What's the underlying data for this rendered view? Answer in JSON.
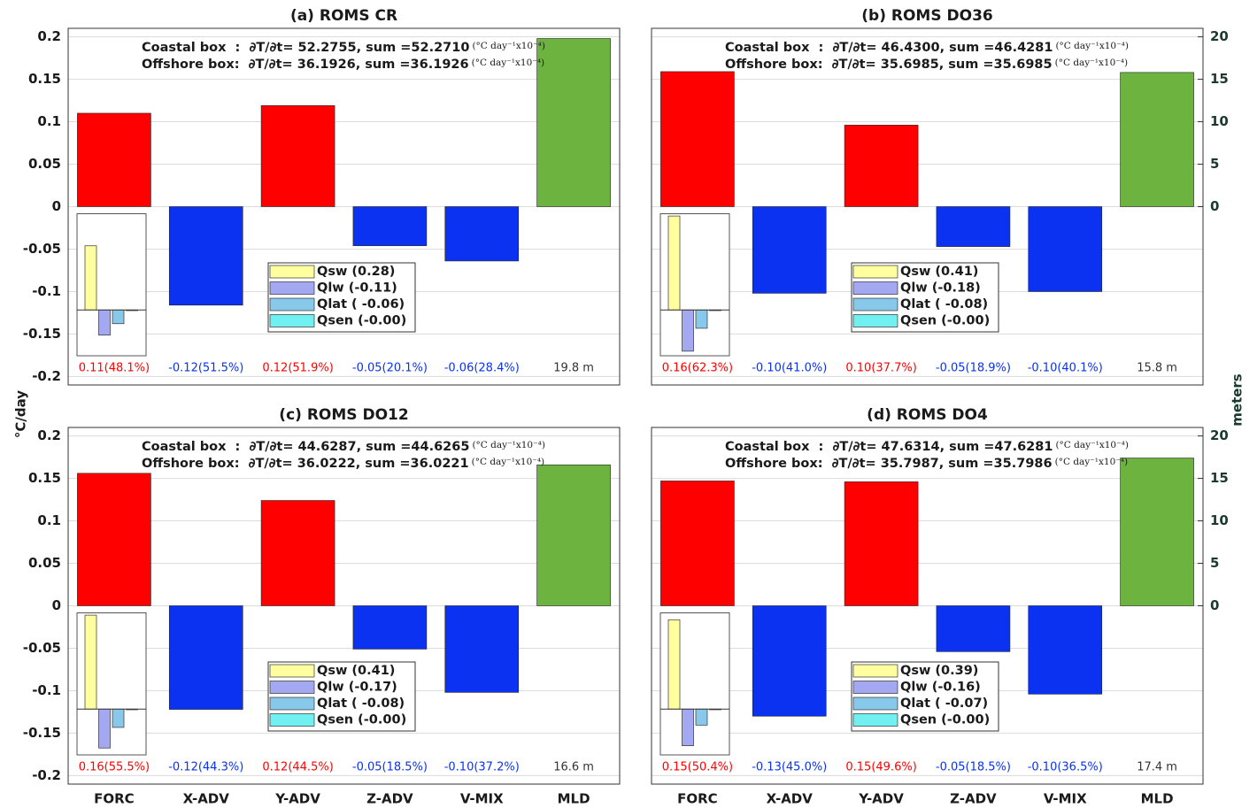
{
  "ylabel": "°C/day",
  "y2label": "meters",
  "chart_data": [
    {
      "type": "bar",
      "title": "(a) ROMS CR",
      "axis_side": "left",
      "annotations": [
        "Coastal box  :  ∂T/∂t= 52.2755, sum =52.2710",
        "Offshore box:  ∂T/∂t= 36.1926, sum =36.1926"
      ],
      "annotation_units": "(°C day⁻¹x10⁻⁴)",
      "series": [
        {
          "values": [
            0.11,
            -0.116,
            0.119,
            -0.046,
            -0.064,
            null
          ],
          "colors": [
            "#ff0000",
            "#0a32f0",
            "#ff0000",
            "#0a32f0",
            "#0a32f0",
            null
          ],
          "value_labels": [
            "0.11(48.1%)",
            "-0.12(51.5%)",
            "0.12(51.9%)",
            "-0.05(20.1%)",
            "-0.06(28.4%)",
            null
          ]
        },
        {
          "axis": "y2",
          "values": [
            null,
            null,
            null,
            null,
            null,
            19.8
          ],
          "color": "#6db33f",
          "label_color": "#333333",
          "value_labels": [
            null,
            null,
            null,
            null,
            null,
            "19.8 m"
          ]
        }
      ],
      "ylim": [
        -0.21,
        0.21
      ],
      "yticks": [
        0.2,
        0.15,
        0.1,
        0.05,
        0,
        -0.05,
        -0.1,
        -0.15,
        -0.2
      ],
      "y2lim": [
        -21,
        21
      ],
      "grid": true,
      "inset": {
        "type": "bar",
        "ylim": [
          -0.2,
          0.42
        ],
        "series": [
          {
            "name": "Qsw (0.28)",
            "color": "#ffffa0",
            "values": [
              0.28
            ]
          },
          {
            "name": "Qlw (-0.11)",
            "color": "#a3a8f0",
            "values": [
              -0.11
            ]
          },
          {
            "name": "Qlat ( -0.06)",
            "color": "#88c8ea",
            "values": [
              -0.06
            ]
          },
          {
            "name": "Qsen (-0.00)",
            "color": "#70f0f0",
            "values": [
              -0.003
            ]
          }
        ]
      }
    },
    {
      "type": "bar",
      "title": "(b) ROMS DO36",
      "axis_side": "right",
      "annotations": [
        "Coastal box  :  ∂T/∂t= 46.4300, sum =46.4281",
        "Offshore box:  ∂T/∂t= 35.6985, sum =35.6985"
      ],
      "annotation_units": "(°C day⁻¹x10⁻⁴)",
      "series": [
        {
          "values": [
            0.159,
            -0.102,
            0.096,
            -0.047,
            -0.1,
            null
          ],
          "colors": [
            "#ff0000",
            "#0a32f0",
            "#ff0000",
            "#0a32f0",
            "#0a32f0",
            null
          ],
          "value_labels": [
            "0.16(62.3%)",
            "-0.10(41.0%)",
            "0.10(37.7%)",
            "-0.05(18.9%)",
            "-0.10(40.1%)",
            null
          ]
        },
        {
          "axis": "y2",
          "values": [
            null,
            null,
            null,
            null,
            null,
            15.8
          ],
          "color": "#6db33f",
          "label_color": "#333333",
          "value_labels": [
            null,
            null,
            null,
            null,
            null,
            "15.8 m"
          ]
        }
      ],
      "ylim": [
        -0.21,
        0.21
      ],
      "yticks": [
        0.2,
        0.15,
        0.1,
        0.05,
        0,
        -0.05,
        -0.1,
        -0.15,
        -0.2
      ],
      "y2lim": [
        -21,
        21
      ],
      "y2ticks": [
        20,
        15,
        10,
        5,
        0
      ],
      "grid": true,
      "inset": {
        "type": "bar",
        "ylim": [
          -0.2,
          0.42
        ],
        "series": [
          {
            "name": "Qsw (0.41)",
            "color": "#ffffa0",
            "values": [
              0.41
            ]
          },
          {
            "name": "Qlw (-0.18)",
            "color": "#a3a8f0",
            "values": [
              -0.18
            ]
          },
          {
            "name": "Qlat ( -0.08)",
            "color": "#88c8ea",
            "values": [
              -0.08
            ]
          },
          {
            "name": "Qsen (-0.00)",
            "color": "#70f0f0",
            "values": [
              -0.003
            ]
          }
        ]
      }
    },
    {
      "type": "bar",
      "title": "(c) ROMS DO12",
      "axis_side": "left",
      "annotations": [
        "Coastal box  :  ∂T/∂t= 44.6287, sum =44.6265",
        "Offshore box:  ∂T/∂t= 36.0222, sum =36.0221"
      ],
      "annotation_units": "(°C day⁻¹x10⁻⁴)",
      "categories": [
        "FORC",
        "X-ADV",
        "Y-ADV",
        "Z-ADV",
        "V-MIX",
        "MLD"
      ],
      "series": [
        {
          "values": [
            0.156,
            -0.122,
            0.124,
            -0.051,
            -0.102,
            null
          ],
          "colors": [
            "#ff0000",
            "#0a32f0",
            "#ff0000",
            "#0a32f0",
            "#0a32f0",
            null
          ],
          "value_labels": [
            "0.16(55.5%)",
            "-0.12(44.3%)",
            "0.12(44.5%)",
            "-0.05(18.5%)",
            "-0.10(37.2%)",
            null
          ]
        },
        {
          "axis": "y2",
          "values": [
            null,
            null,
            null,
            null,
            null,
            16.6
          ],
          "color": "#6db33f",
          "label_color": "#333333",
          "value_labels": [
            null,
            null,
            null,
            null,
            null,
            "16.6 m"
          ]
        }
      ],
      "ylim": [
        -0.21,
        0.21
      ],
      "yticks": [
        0.2,
        0.15,
        0.1,
        0.05,
        0,
        -0.05,
        -0.1,
        -0.15,
        -0.2
      ],
      "y2lim": [
        -21,
        21
      ],
      "grid": true,
      "inset": {
        "type": "bar",
        "ylim": [
          -0.2,
          0.42
        ],
        "series": [
          {
            "name": "Qsw (0.41)",
            "color": "#ffffa0",
            "values": [
              0.41
            ]
          },
          {
            "name": "Qlw (-0.17)",
            "color": "#a3a8f0",
            "values": [
              -0.17
            ]
          },
          {
            "name": "Qlat ( -0.08)",
            "color": "#88c8ea",
            "values": [
              -0.08
            ]
          },
          {
            "name": "Qsen (-0.00)",
            "color": "#70f0f0",
            "values": [
              -0.003
            ]
          }
        ]
      }
    },
    {
      "type": "bar",
      "title": "(d) ROMS DO4",
      "axis_side": "right",
      "annotations": [
        "Coastal box  :  ∂T/∂t= 47.6314, sum =47.6281",
        "Offshore box:  ∂T/∂t= 35.7987, sum =35.7986"
      ],
      "annotation_units": "(°C day⁻¹x10⁻⁴)",
      "categories": [
        "FORC",
        "X-ADV",
        "Y-ADV",
        "Z-ADV",
        "V-MIX",
        "MLD"
      ],
      "series": [
        {
          "values": [
            0.147,
            -0.13,
            0.146,
            -0.054,
            -0.104,
            null
          ],
          "colors": [
            "#ff0000",
            "#0a32f0",
            "#ff0000",
            "#0a32f0",
            "#0a32f0",
            null
          ],
          "value_labels": [
            "0.15(50.4%)",
            "-0.13(45.0%)",
            "0.15(49.6%)",
            "-0.05(18.5%)",
            "-0.10(36.5%)",
            null
          ]
        },
        {
          "axis": "y2",
          "values": [
            null,
            null,
            null,
            null,
            null,
            17.4
          ],
          "color": "#6db33f",
          "label_color": "#333333",
          "value_labels": [
            null,
            null,
            null,
            null,
            null,
            "17.4 m"
          ]
        }
      ],
      "ylim": [
        -0.21,
        0.21
      ],
      "yticks": [
        0.2,
        0.15,
        0.1,
        0.05,
        0,
        -0.05,
        -0.1,
        -0.15,
        -0.2
      ],
      "y2lim": [
        -21,
        21
      ],
      "y2ticks": [
        20,
        15,
        10,
        5,
        0
      ],
      "grid": true,
      "inset": {
        "type": "bar",
        "ylim": [
          -0.2,
          0.42
        ],
        "series": [
          {
            "name": "Qsw (0.39)",
            "color": "#ffffa0",
            "values": [
              0.39
            ]
          },
          {
            "name": "Qlw (-0.16)",
            "color": "#a3a8f0",
            "values": [
              -0.16
            ]
          },
          {
            "name": "Qlat ( -0.07)",
            "color": "#88c8ea",
            "values": [
              -0.07
            ]
          },
          {
            "name": "Qsen (-0.00)",
            "color": "#70f0f0",
            "values": [
              -0.003
            ]
          }
        ]
      }
    }
  ]
}
